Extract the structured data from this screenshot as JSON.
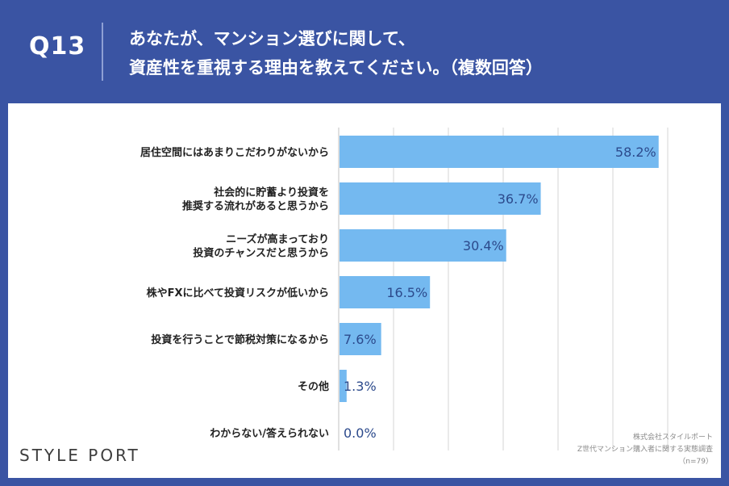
{
  "header": {
    "question_no": "Q13",
    "title_line1": "あなたが、マンション選びに関して、",
    "title_line2": "資産性を重視する理由を教えてください。（複数回答）"
  },
  "chart_data": {
    "type": "bar",
    "orientation": "horizontal",
    "categories": [
      [
        "居住空間にはあまりこだわりがないから"
      ],
      [
        "社会的に貯蓄より投資を",
        "推奨する流れがあると思うから"
      ],
      [
        "ニーズが高まっており",
        "投資のチャンスだと思うから"
      ],
      [
        "株やFXに比べて投資リスクが低いから"
      ],
      [
        "投資を行うことで節税対策になるから"
      ],
      [
        "その他"
      ],
      [
        "わからない/答えられない"
      ]
    ],
    "values": [
      58.2,
      36.7,
      30.4,
      16.5,
      7.6,
      1.3,
      0.0
    ],
    "value_labels": [
      "58.2%",
      "36.7%",
      "30.4%",
      "16.5%",
      "7.6%",
      "1.3%",
      "0.0%"
    ],
    "xlim": [
      0,
      60
    ],
    "grid": true,
    "bar_color": "#74b9f0",
    "grid_color": "#d6d6d6",
    "label_color": "#2c4a8c"
  },
  "footer": {
    "brand": "STYLE PORT",
    "source_line1": "株式会社スタイルポート",
    "source_line2": "Z世代マンション購入者に関する実態調査",
    "source_line3": "（n=79）"
  },
  "colors": {
    "background": "#3a54a3",
    "panel": "#ffffff"
  }
}
